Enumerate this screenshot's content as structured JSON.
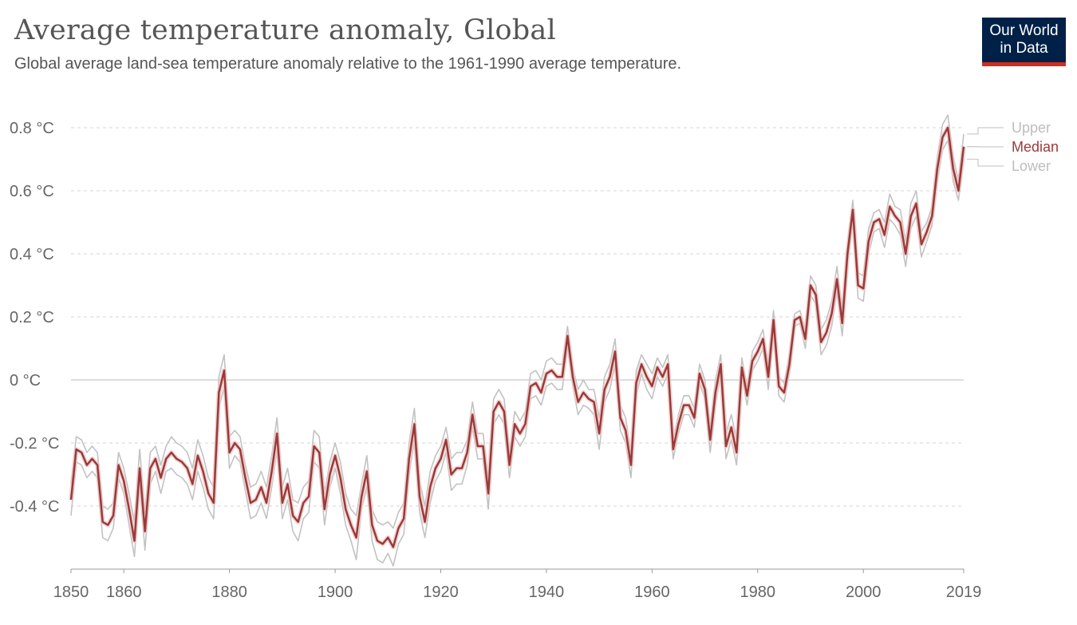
{
  "header": {
    "title": "Average temperature anomaly, Global",
    "subtitle": "Global average land-sea temperature anomaly relative to the 1961-1990 average temperature."
  },
  "logo": {
    "line1": "Our World",
    "line2": "in Data",
    "bg_color": "#002147",
    "accent_color": "#d42b21"
  },
  "chart_data": {
    "type": "line",
    "title": "Average temperature anomaly, Global",
    "subtitle": "Global average land-sea temperature anomaly relative to the 1961-1990 average temperature.",
    "xlabel": "",
    "ylabel": "",
    "xlim": [
      1850,
      2019
    ],
    "ylim": [
      -0.58,
      0.84
    ],
    "x_ticks": [
      1850,
      1860,
      1880,
      1900,
      1920,
      1940,
      1960,
      1980,
      2000,
      2019
    ],
    "x_tick_labels": [
      "1850",
      "1860",
      "1880",
      "1900",
      "1920",
      "1940",
      "1960",
      "1980",
      "2000",
      "2019"
    ],
    "y_ticks": [
      -0.4,
      -0.2,
      0,
      0.2,
      0.4,
      0.6,
      0.8
    ],
    "y_tick_labels": [
      "-0.4 °C",
      "-0.2 °C",
      "0 °C",
      "0.2 °C",
      "0.4 °C",
      "0.6 °C",
      "0.8 °C"
    ],
    "grid": "horizontal dashed",
    "legend": "right, labels at line ends",
    "x": [
      1850,
      1851,
      1852,
      1853,
      1854,
      1855,
      1856,
      1857,
      1858,
      1859,
      1860,
      1861,
      1862,
      1863,
      1864,
      1865,
      1866,
      1867,
      1868,
      1869,
      1870,
      1871,
      1872,
      1873,
      1874,
      1875,
      1876,
      1877,
      1878,
      1879,
      1880,
      1881,
      1882,
      1883,
      1884,
      1885,
      1886,
      1887,
      1888,
      1889,
      1890,
      1891,
      1892,
      1893,
      1894,
      1895,
      1896,
      1897,
      1898,
      1899,
      1900,
      1901,
      1902,
      1903,
      1904,
      1905,
      1906,
      1907,
      1908,
      1909,
      1910,
      1911,
      1912,
      1913,
      1914,
      1915,
      1916,
      1917,
      1918,
      1919,
      1920,
      1921,
      1922,
      1923,
      1924,
      1925,
      1926,
      1927,
      1928,
      1929,
      1930,
      1931,
      1932,
      1933,
      1934,
      1935,
      1936,
      1937,
      1938,
      1939,
      1940,
      1941,
      1942,
      1943,
      1944,
      1945,
      1946,
      1947,
      1948,
      1949,
      1950,
      1951,
      1952,
      1953,
      1954,
      1955,
      1956,
      1957,
      1958,
      1959,
      1960,
      1961,
      1962,
      1963,
      1964,
      1965,
      1966,
      1967,
      1968,
      1969,
      1970,
      1971,
      1972,
      1973,
      1974,
      1975,
      1976,
      1977,
      1978,
      1979,
      1980,
      1981,
      1982,
      1983,
      1984,
      1985,
      1986,
      1987,
      1988,
      1989,
      1990,
      1991,
      1992,
      1993,
      1994,
      1995,
      1996,
      1997,
      1998,
      1999,
      2000,
      2001,
      2002,
      2003,
      2004,
      2005,
      2006,
      2007,
      2008,
      2009,
      2010,
      2011,
      2012,
      2013,
      2014,
      2015,
      2016,
      2017,
      2018,
      2019
    ],
    "series": [
      {
        "name": "Upper",
        "color": "#c2c2c2",
        "values": [
          -0.33,
          -0.18,
          -0.19,
          -0.23,
          -0.21,
          -0.23,
          -0.4,
          -0.41,
          -0.39,
          -0.23,
          -0.28,
          -0.36,
          -0.45,
          -0.22,
          -0.42,
          -0.23,
          -0.21,
          -0.27,
          -0.21,
          -0.18,
          -0.2,
          -0.21,
          -0.23,
          -0.28,
          -0.19,
          -0.24,
          -0.31,
          -0.34,
          0.01,
          0.08,
          -0.18,
          -0.16,
          -0.18,
          -0.27,
          -0.34,
          -0.33,
          -0.29,
          -0.34,
          -0.24,
          -0.12,
          -0.34,
          -0.28,
          -0.38,
          -0.39,
          -0.34,
          -0.32,
          -0.16,
          -0.18,
          -0.36,
          -0.26,
          -0.2,
          -0.26,
          -0.36,
          -0.41,
          -0.43,
          -0.33,
          -0.24,
          -0.41,
          -0.45,
          -0.46,
          -0.45,
          -0.47,
          -0.42,
          -0.39,
          -0.2,
          -0.09,
          -0.32,
          -0.4,
          -0.29,
          -0.24,
          -0.21,
          -0.15,
          -0.25,
          -0.23,
          -0.23,
          -0.19,
          -0.07,
          -0.17,
          -0.17,
          -0.31,
          -0.06,
          -0.03,
          -0.06,
          -0.23,
          -0.1,
          -0.13,
          -0.1,
          0.02,
          0.03,
          0.0,
          0.06,
          0.07,
          0.05,
          0.05,
          0.17,
          0.04,
          -0.03,
          0.0,
          -0.03,
          -0.03,
          -0.12,
          0.01,
          0.05,
          0.13,
          -0.08,
          -0.12,
          -0.23,
          0.03,
          0.08,
          0.05,
          0.02,
          0.07,
          0.04,
          0.08,
          -0.19,
          -0.11,
          -0.05,
          -0.05,
          -0.09,
          0.05,
          0.0,
          -0.15,
          0.0,
          0.08,
          -0.17,
          -0.11,
          -0.19,
          0.07,
          -0.02,
          0.09,
          0.12,
          0.16,
          0.05,
          0.22,
          0.01,
          -0.01,
          0.08,
          0.21,
          0.22,
          0.16,
          0.33,
          0.3,
          0.16,
          0.19,
          0.25,
          0.36,
          0.22,
          0.43,
          0.57,
          0.34,
          0.33,
          0.48,
          0.53,
          0.54,
          0.5,
          0.59,
          0.55,
          0.54,
          0.44,
          0.56,
          0.6,
          0.47,
          0.5,
          0.55,
          0.71,
          0.81,
          0.84,
          0.71,
          0.63,
          0.78
        ]
      },
      {
        "name": "Median",
        "color": "#9b3a3a",
        "values": [
          -0.38,
          -0.22,
          -0.23,
          -0.27,
          -0.25,
          -0.27,
          -0.45,
          -0.46,
          -0.43,
          -0.27,
          -0.32,
          -0.41,
          -0.51,
          -0.28,
          -0.48,
          -0.28,
          -0.25,
          -0.31,
          -0.25,
          -0.23,
          -0.25,
          -0.26,
          -0.28,
          -0.33,
          -0.24,
          -0.29,
          -0.36,
          -0.39,
          -0.04,
          0.03,
          -0.23,
          -0.2,
          -0.22,
          -0.31,
          -0.39,
          -0.38,
          -0.34,
          -0.39,
          -0.29,
          -0.17,
          -0.39,
          -0.33,
          -0.43,
          -0.45,
          -0.39,
          -0.37,
          -0.21,
          -0.23,
          -0.41,
          -0.3,
          -0.24,
          -0.31,
          -0.41,
          -0.46,
          -0.5,
          -0.37,
          -0.29,
          -0.46,
          -0.51,
          -0.52,
          -0.5,
          -0.53,
          -0.47,
          -0.44,
          -0.25,
          -0.14,
          -0.37,
          -0.45,
          -0.34,
          -0.28,
          -0.25,
          -0.19,
          -0.3,
          -0.28,
          -0.28,
          -0.23,
          -0.11,
          -0.21,
          -0.21,
          -0.36,
          -0.1,
          -0.07,
          -0.1,
          -0.27,
          -0.14,
          -0.17,
          -0.14,
          -0.02,
          -0.01,
          -0.04,
          0.02,
          0.03,
          0.01,
          0.01,
          0.14,
          0.01,
          -0.07,
          -0.04,
          -0.06,
          -0.07,
          -0.17,
          -0.03,
          0.01,
          0.09,
          -0.12,
          -0.16,
          -0.27,
          -0.01,
          0.05,
          0.01,
          -0.02,
          0.04,
          0.01,
          0.05,
          -0.22,
          -0.14,
          -0.08,
          -0.08,
          -0.12,
          0.02,
          -0.03,
          -0.19,
          -0.04,
          0.05,
          -0.21,
          -0.15,
          -0.23,
          0.04,
          -0.05,
          0.06,
          0.09,
          0.13,
          0.01,
          0.19,
          -0.02,
          -0.04,
          0.05,
          0.19,
          0.2,
          0.13,
          0.3,
          0.27,
          0.12,
          0.15,
          0.21,
          0.32,
          0.18,
          0.4,
          0.54,
          0.3,
          0.29,
          0.44,
          0.5,
          0.51,
          0.46,
          0.55,
          0.52,
          0.5,
          0.4,
          0.52,
          0.56,
          0.43,
          0.47,
          0.52,
          0.67,
          0.77,
          0.8,
          0.67,
          0.6,
          0.74
        ]
      },
      {
        "name": "Lower",
        "color": "#c2c2c2",
        "values": [
          -0.43,
          -0.26,
          -0.27,
          -0.31,
          -0.29,
          -0.31,
          -0.5,
          -0.51,
          -0.47,
          -0.31,
          -0.36,
          -0.46,
          -0.56,
          -0.33,
          -0.54,
          -0.33,
          -0.29,
          -0.36,
          -0.29,
          -0.28,
          -0.3,
          -0.31,
          -0.33,
          -0.38,
          -0.29,
          -0.34,
          -0.41,
          -0.44,
          -0.09,
          -0.02,
          -0.28,
          -0.24,
          -0.26,
          -0.35,
          -0.44,
          -0.43,
          -0.39,
          -0.44,
          -0.34,
          -0.22,
          -0.44,
          -0.38,
          -0.48,
          -0.51,
          -0.44,
          -0.42,
          -0.26,
          -0.28,
          -0.46,
          -0.34,
          -0.28,
          -0.36,
          -0.46,
          -0.51,
          -0.57,
          -0.41,
          -0.34,
          -0.51,
          -0.57,
          -0.58,
          -0.55,
          -0.59,
          -0.52,
          -0.49,
          -0.3,
          -0.19,
          -0.42,
          -0.5,
          -0.39,
          -0.32,
          -0.29,
          -0.23,
          -0.35,
          -0.33,
          -0.33,
          -0.27,
          -0.15,
          -0.25,
          -0.25,
          -0.41,
          -0.14,
          -0.11,
          -0.14,
          -0.31,
          -0.18,
          -0.21,
          -0.18,
          -0.06,
          -0.05,
          -0.08,
          -0.02,
          -0.01,
          -0.03,
          -0.03,
          0.11,
          -0.02,
          -0.11,
          -0.08,
          -0.09,
          -0.11,
          -0.22,
          -0.07,
          -0.03,
          0.05,
          -0.16,
          -0.2,
          -0.31,
          -0.05,
          0.02,
          -0.03,
          -0.06,
          0.01,
          -0.02,
          0.02,
          -0.25,
          -0.17,
          -0.11,
          -0.11,
          -0.15,
          -0.01,
          -0.06,
          -0.23,
          -0.08,
          0.02,
          -0.25,
          -0.19,
          -0.27,
          0.01,
          -0.08,
          0.03,
          0.06,
          0.1,
          -0.03,
          0.16,
          -0.05,
          -0.07,
          0.02,
          0.17,
          0.18,
          0.1,
          0.27,
          0.24,
          0.08,
          0.11,
          0.17,
          0.28,
          0.14,
          0.37,
          0.51,
          0.26,
          0.25,
          0.4,
          0.47,
          0.48,
          0.42,
          0.51,
          0.49,
          0.46,
          0.36,
          0.48,
          0.52,
          0.39,
          0.44,
          0.49,
          0.63,
          0.73,
          0.76,
          0.63,
          0.57,
          0.7
        ]
      }
    ]
  }
}
